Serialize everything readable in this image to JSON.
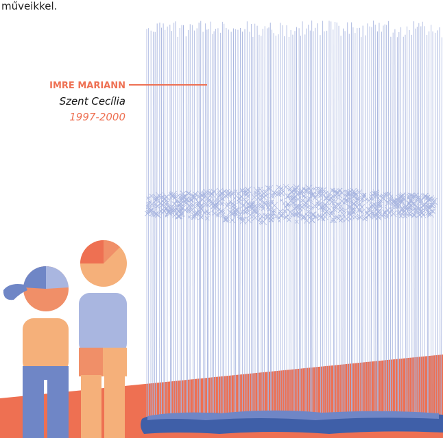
{
  "intro_text": "műveikkel.",
  "caption": {
    "name": "IMRE MARIANN",
    "school": "Szent Cecília",
    "years": "1997-2000"
  }
}
